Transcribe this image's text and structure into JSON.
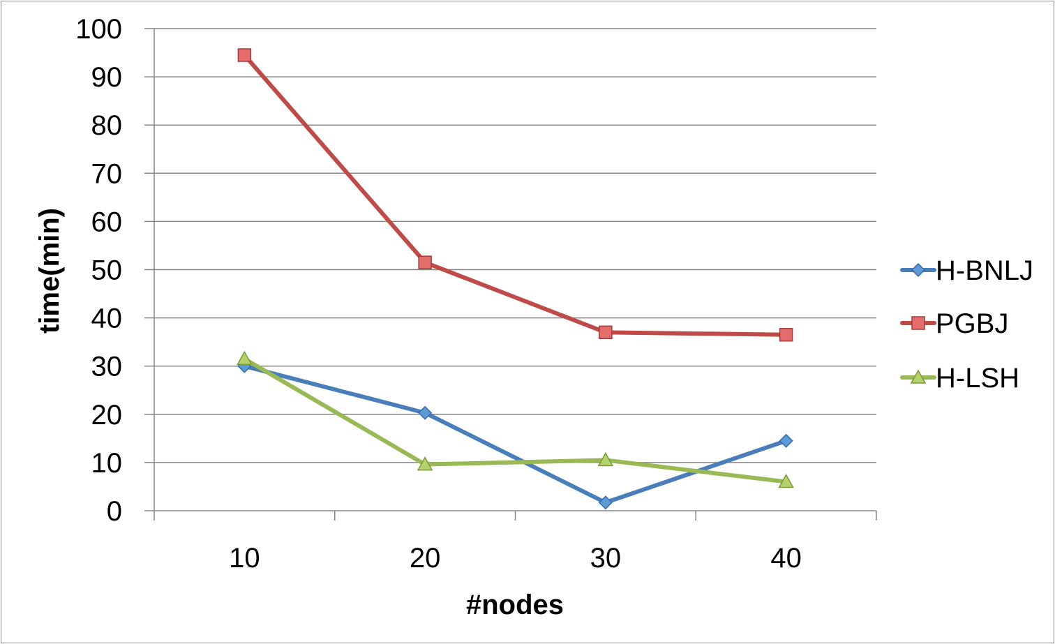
{
  "chart_data": {
    "type": "line",
    "title": "",
    "xlabel": "#nodes",
    "ylabel": "time(min)",
    "categories": [
      "10",
      "20",
      "30",
      "40"
    ],
    "ylim": [
      0,
      100
    ],
    "yticks": [
      "0",
      "10",
      "20",
      "30",
      "40",
      "50",
      "60",
      "70",
      "80",
      "90",
      "100"
    ],
    "grid": "horizontal",
    "legend_position": "right",
    "series": [
      {
        "name": "H-BNLJ",
        "values": [
          30,
          20.3,
          1.7,
          14.5
        ],
        "color": "#4a7ebb",
        "marker": "diamond"
      },
      {
        "name": "PGBJ",
        "values": [
          94.5,
          51.5,
          37,
          36.5
        ],
        "color": "#be4b48",
        "marker": "square"
      },
      {
        "name": "H-LSH",
        "values": [
          31.5,
          9.6,
          10.5,
          6
        ],
        "color": "#98b954",
        "marker": "triangle"
      }
    ]
  }
}
